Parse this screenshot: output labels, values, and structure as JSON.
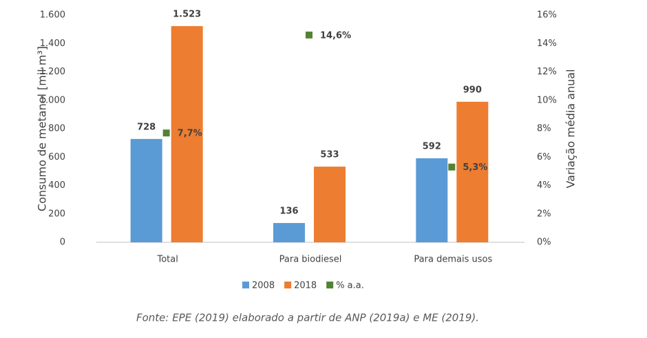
{
  "chart_data": {
    "type": "bar",
    "categories": [
      "Total",
      "Para biodiesel",
      "Para demais usos"
    ],
    "series": [
      {
        "name": "2008",
        "color": "#5b9bd5",
        "values": [
          728,
          136,
          592
        ],
        "value_labels": [
          "728",
          "136",
          "592"
        ]
      },
      {
        "name": "2018",
        "color": "#ed7d31",
        "values": [
          1523,
          533,
          990
        ],
        "value_labels": [
          "1.523",
          "533",
          "990"
        ]
      },
      {
        "name": "% a.a.",
        "color": "#548235",
        "type": "scatter",
        "axis": "y2",
        "values": [
          7.7,
          14.6,
          5.3
        ],
        "value_labels": [
          "7,7%",
          "14,6%",
          "5,3%"
        ]
      }
    ],
    "ylabel": "Consumo de metanol [mil m³]",
    "y2label": "Variação média anual",
    "ylim": [
      0,
      1600
    ],
    "yticks": [
      0,
      200,
      400,
      600,
      800,
      {
        "value": 1000,
        "label": "1.000"
      },
      {
        "value": 1200,
        "label": "1.200"
      },
      {
        "value": 1400,
        "label": "1.400"
      },
      {
        "value": 1600,
        "label": "1.600"
      }
    ],
    "y2lim": [
      0,
      16
    ],
    "y2ticks": [
      {
        "value": 0,
        "label": "0%"
      },
      {
        "value": 2,
        "label": "2%"
      },
      {
        "value": 4,
        "label": "4%"
      },
      {
        "value": 6,
        "label": "6%"
      },
      {
        "value": 8,
        "label": "8%"
      },
      {
        "value": 10,
        "label": "10%"
      },
      {
        "value": 12,
        "label": "12%"
      },
      {
        "value": 14,
        "label": "14%"
      },
      {
        "value": 16,
        "label": "16%"
      }
    ],
    "legend": "bottom",
    "source": "Fonte: EPE (2019) elaborado a partir de ANP (2019a) e ME (2019)."
  }
}
